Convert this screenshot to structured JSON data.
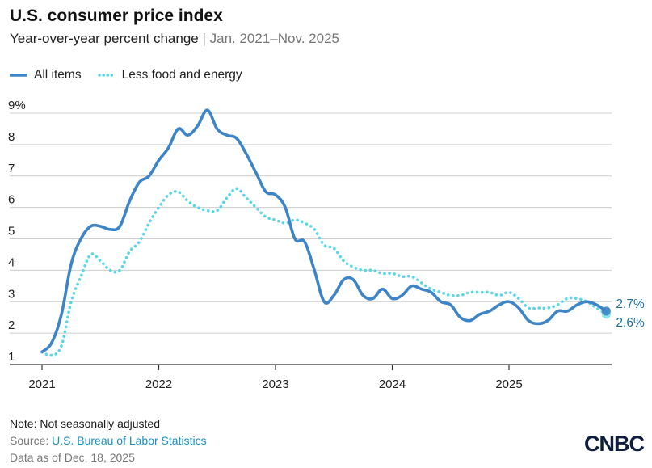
{
  "title": "U.S. consumer price index",
  "subtitle": {
    "main": "Year-over-year percent change",
    "separator": "|",
    "range": "Jan. 2021–Nov. 2025"
  },
  "legend": [
    {
      "label": "All items",
      "color": "#3d85c6",
      "style": "solid"
    },
    {
      "label": "Less food and energy",
      "color": "#5ad7e6",
      "style": "dotted"
    }
  ],
  "notes": {
    "note": "Note: Not seasonally adjusted",
    "source_prefix": "Source: ",
    "source_name": "U.S. Bureau of Labor Statistics",
    "as_of": "Data as of Dec. 18, 2025"
  },
  "logo": "CNBC",
  "colors": {
    "all_items": "#3d85c6",
    "core": "#5ad7e6",
    "grid": "#cccccc",
    "axis": "#333333",
    "label": "#1e6fa0"
  },
  "chart_data": {
    "type": "line",
    "title": "U.S. consumer price index",
    "ylabel": "",
    "xlabel": "",
    "ylim": [
      1,
      9
    ],
    "yticks": [
      "1",
      "2",
      "3",
      "4",
      "5",
      "6",
      "7",
      "8",
      "9%"
    ],
    "xticks": [
      "2021",
      "2022",
      "2023",
      "2024",
      "2025"
    ],
    "grid": true,
    "legend_position": "top-left",
    "x": [
      "2021-01",
      "2021-02",
      "2021-03",
      "2021-04",
      "2021-05",
      "2021-06",
      "2021-07",
      "2021-08",
      "2021-09",
      "2021-10",
      "2021-11",
      "2021-12",
      "2022-01",
      "2022-02",
      "2022-03",
      "2022-04",
      "2022-05",
      "2022-06",
      "2022-07",
      "2022-08",
      "2022-09",
      "2022-10",
      "2022-11",
      "2022-12",
      "2023-01",
      "2023-02",
      "2023-03",
      "2023-04",
      "2023-05",
      "2023-06",
      "2023-07",
      "2023-08",
      "2023-09",
      "2023-10",
      "2023-11",
      "2023-12",
      "2024-01",
      "2024-02",
      "2024-03",
      "2024-04",
      "2024-05",
      "2024-06",
      "2024-07",
      "2024-08",
      "2024-09",
      "2024-10",
      "2024-11",
      "2024-12",
      "2025-01",
      "2025-02",
      "2025-03",
      "2025-04",
      "2025-05",
      "2025-06",
      "2025-07",
      "2025-08",
      "2025-09",
      "2025-10",
      "2025-11"
    ],
    "series": [
      {
        "name": "All items",
        "values": [
          1.4,
          1.7,
          2.6,
          4.2,
          5.0,
          5.4,
          5.4,
          5.3,
          5.4,
          6.2,
          6.8,
          7.0,
          7.5,
          7.9,
          8.5,
          8.3,
          8.6,
          9.1,
          8.5,
          8.3,
          8.2,
          7.7,
          7.1,
          6.5,
          6.4,
          6.0,
          5.0,
          4.9,
          4.0,
          3.0,
          3.2,
          3.7,
          3.7,
          3.2,
          3.1,
          3.4,
          3.1,
          3.2,
          3.5,
          3.4,
          3.3,
          3.0,
          2.9,
          2.5,
          2.4,
          2.6,
          2.7,
          2.9,
          3.0,
          2.8,
          2.4,
          2.3,
          2.4,
          2.7,
          2.7,
          2.9,
          3.0,
          2.9,
          2.7
        ],
        "end_label": "2.7%"
      },
      {
        "name": "Less food and energy",
        "values": [
          1.4,
          1.3,
          1.6,
          3.0,
          3.8,
          4.5,
          4.3,
          4.0,
          4.0,
          4.6,
          4.9,
          5.5,
          6.0,
          6.4,
          6.5,
          6.2,
          6.0,
          5.9,
          5.9,
          6.3,
          6.6,
          6.3,
          6.0,
          5.7,
          5.6,
          5.5,
          5.6,
          5.5,
          5.3,
          4.8,
          4.7,
          4.3,
          4.1,
          4.0,
          4.0,
          3.9,
          3.9,
          3.8,
          3.8,
          3.6,
          3.4,
          3.3,
          3.2,
          3.2,
          3.3,
          3.3,
          3.3,
          3.2,
          3.3,
          3.1,
          2.8,
          2.8,
          2.8,
          2.9,
          3.1,
          3.1,
          3.0,
          2.8,
          2.6
        ],
        "end_label": "2.6%"
      }
    ]
  }
}
